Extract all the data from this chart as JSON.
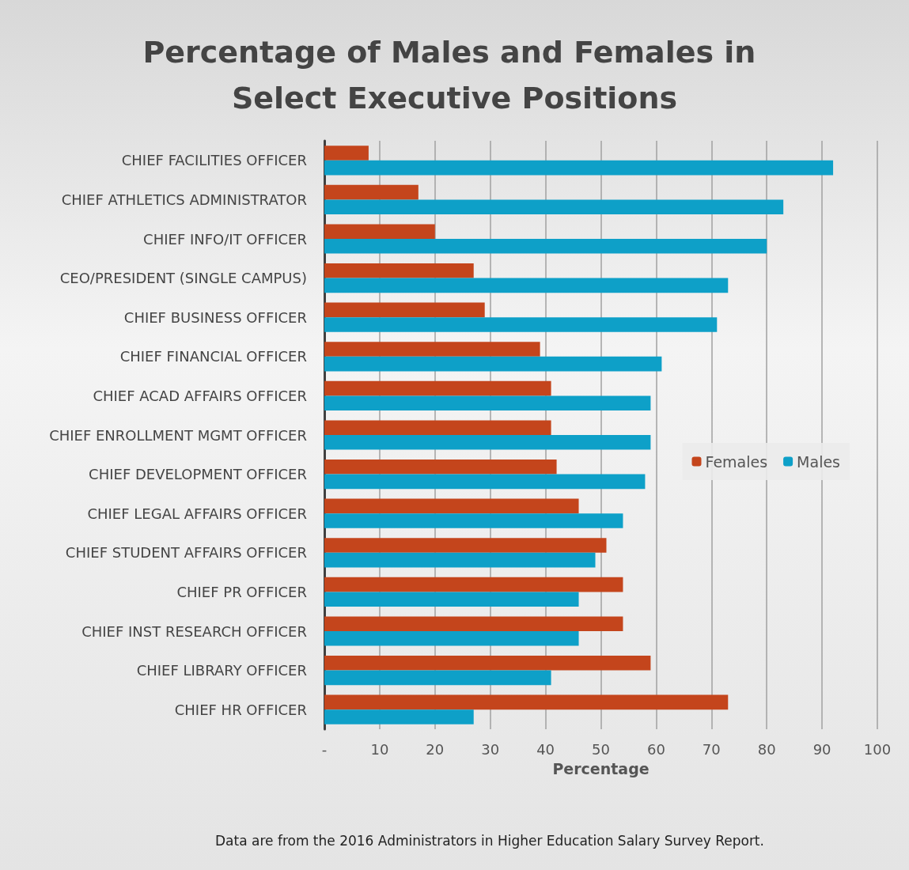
{
  "chart_data": {
    "type": "bar",
    "orientation": "horizontal",
    "title": "Percentage of Males and Females in Select Executive Positions",
    "xlabel": "Percentage",
    "categories": [
      "CHIEF FACILITIES OFFICER",
      "CHIEF ATHLETICS ADMINISTRATOR",
      "CHIEF INFO/IT OFFICER",
      "CEO/PRESIDENT (SINGLE CAMPUS)",
      "CHIEF BUSINESS OFFICER",
      "CHIEF FINANCIAL OFFICER",
      "CHIEF ACAD AFFAIRS OFFICER",
      "CHIEF ENROLLMENT MGMT OFFICER",
      "CHIEF DEVELOPMENT OFFICER",
      "CHIEF LEGAL AFFAIRS OFFICER",
      "CHIEF STUDENT AFFAIRS OFFICER",
      "CHIEF PR OFFICER",
      "CHIEF INST RESEARCH OFFICER",
      "CHIEF LIBRARY OFFICER",
      "CHIEF HR OFFICER"
    ],
    "series": [
      {
        "name": "Females",
        "color": "#c4451c",
        "values": [
          8,
          17,
          20,
          27,
          29,
          39,
          41,
          41,
          42,
          46,
          51,
          54,
          54,
          59,
          73
        ]
      },
      {
        "name": "Males",
        "color": "#0ea0c8",
        "values": [
          92,
          83,
          80,
          73,
          71,
          61,
          59,
          59,
          58,
          54,
          49,
          46,
          46,
          41,
          27
        ]
      }
    ],
    "xlim": [
      0,
      100
    ],
    "xticks": [
      {
        "value": 0,
        "label": "-"
      },
      10,
      20,
      30,
      40,
      50,
      60,
      70,
      80,
      90,
      100
    ],
    "grid": "x",
    "legend": "right",
    "annotations": [
      "Data are from the 2016 Administrators in Higher Education Salary Survey Report."
    ]
  }
}
